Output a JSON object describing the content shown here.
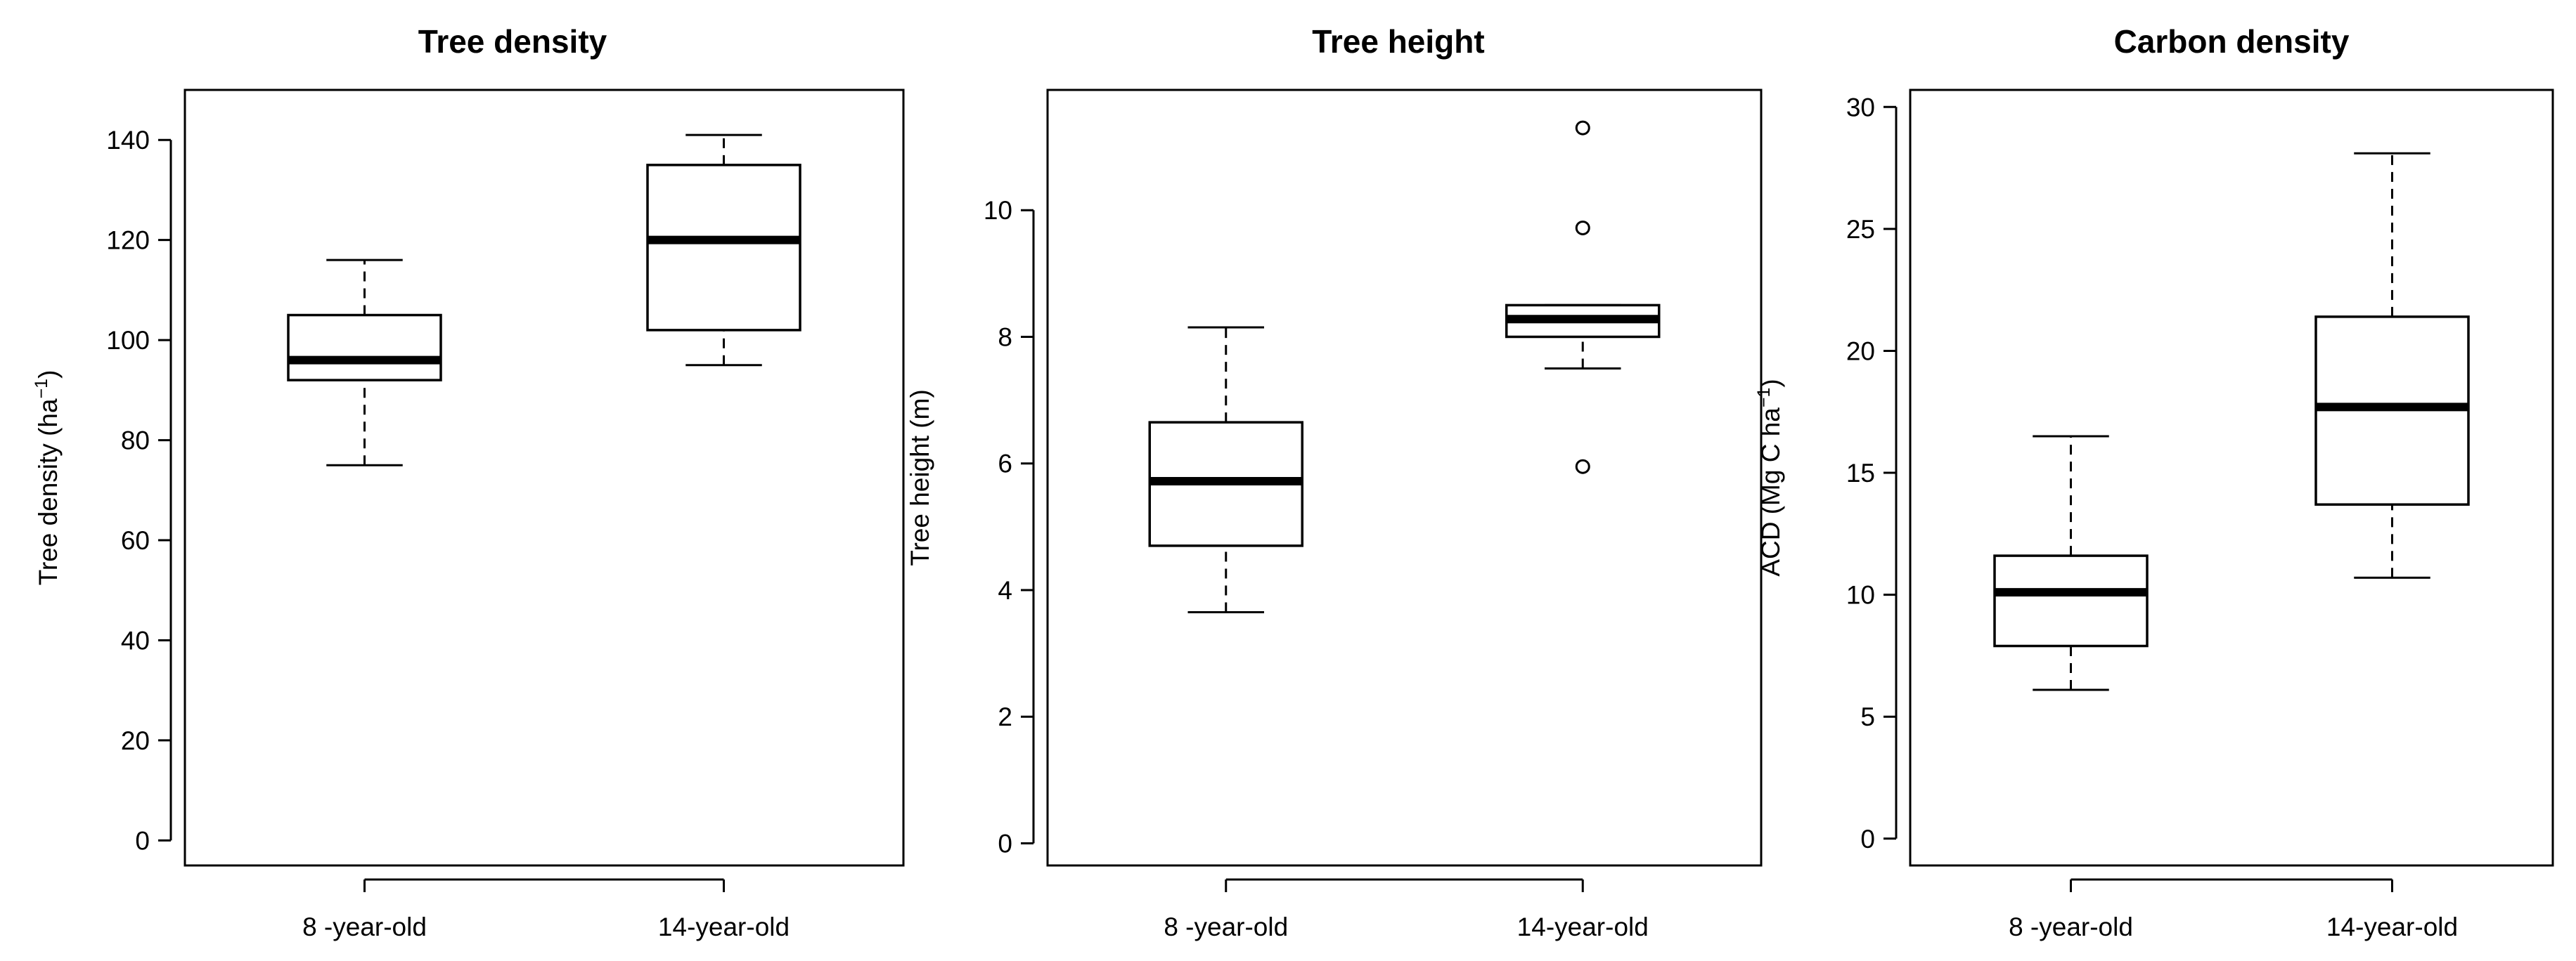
{
  "chart_data": [
    {
      "type": "box",
      "title": "Tree density",
      "xlabel": "",
      "ylabel": "Tree density (ha",
      "ylabel_sup": "−1",
      "ylabel_end": ")",
      "ylim": [
        -5,
        150
      ],
      "yticks": [
        0,
        20,
        40,
        60,
        80,
        100,
        120,
        140
      ],
      "yticks_text": [
        "0",
        "20",
        "40",
        "60",
        "80",
        "100",
        "120",
        "140"
      ],
      "categories": [
        "8 -year-old",
        "14-year-old"
      ],
      "boxes": [
        {
          "whisker_low": 75,
          "q1": 92,
          "median": 96,
          "q3": 105,
          "whisker_high": 116,
          "outliers": []
        },
        {
          "whisker_low": 95,
          "q1": 102,
          "median": 120,
          "q3": 135,
          "whisker_high": 141,
          "outliers": []
        }
      ]
    },
    {
      "type": "box",
      "title": "Tree height",
      "xlabel": "",
      "ylabel": "Tree height (m)",
      "ylabel_sup": "",
      "ylabel_end": "",
      "ylim": [
        -0.35,
        11.9
      ],
      "yticks": [
        0,
        2,
        4,
        6,
        8,
        10
      ],
      "yticks_text": [
        "0",
        "2",
        "4",
        "6",
        "8",
        "10"
      ],
      "categories": [
        "8 -year-old",
        "14-year-old"
      ],
      "boxes": [
        {
          "whisker_low": 3.65,
          "q1": 4.7,
          "median": 5.72,
          "q3": 6.65,
          "whisker_high": 8.15,
          "outliers": []
        },
        {
          "whisker_low": 7.5,
          "q1": 8.0,
          "median": 8.28,
          "q3": 8.5,
          "whisker_high": 8.5,
          "outliers": [
            11.3,
            9.72,
            5.95
          ]
        }
      ]
    },
    {
      "type": "box",
      "title": "Carbon density",
      "xlabel": "",
      "ylabel": "ACD (Mg C ha",
      "ylabel_sup": "−1",
      "ylabel_end": ")",
      "ylim": [
        -1.1,
        30.7
      ],
      "yticks": [
        0,
        5,
        10,
        15,
        20,
        25,
        30
      ],
      "yticks_text": [
        "0",
        "5",
        "10",
        "15",
        "20",
        "25",
        "30"
      ],
      "categories": [
        "8 -year-old",
        "14-year-old"
      ],
      "boxes": [
        {
          "whisker_low": 6.1,
          "q1": 7.9,
          "median": 10.1,
          "q3": 11.6,
          "whisker_high": 16.5,
          "outliers": []
        },
        {
          "whisker_low": 10.7,
          "q1": 13.7,
          "median": 17.7,
          "q3": 21.4,
          "whisker_high": 28.1,
          "outliers": []
        }
      ]
    }
  ]
}
